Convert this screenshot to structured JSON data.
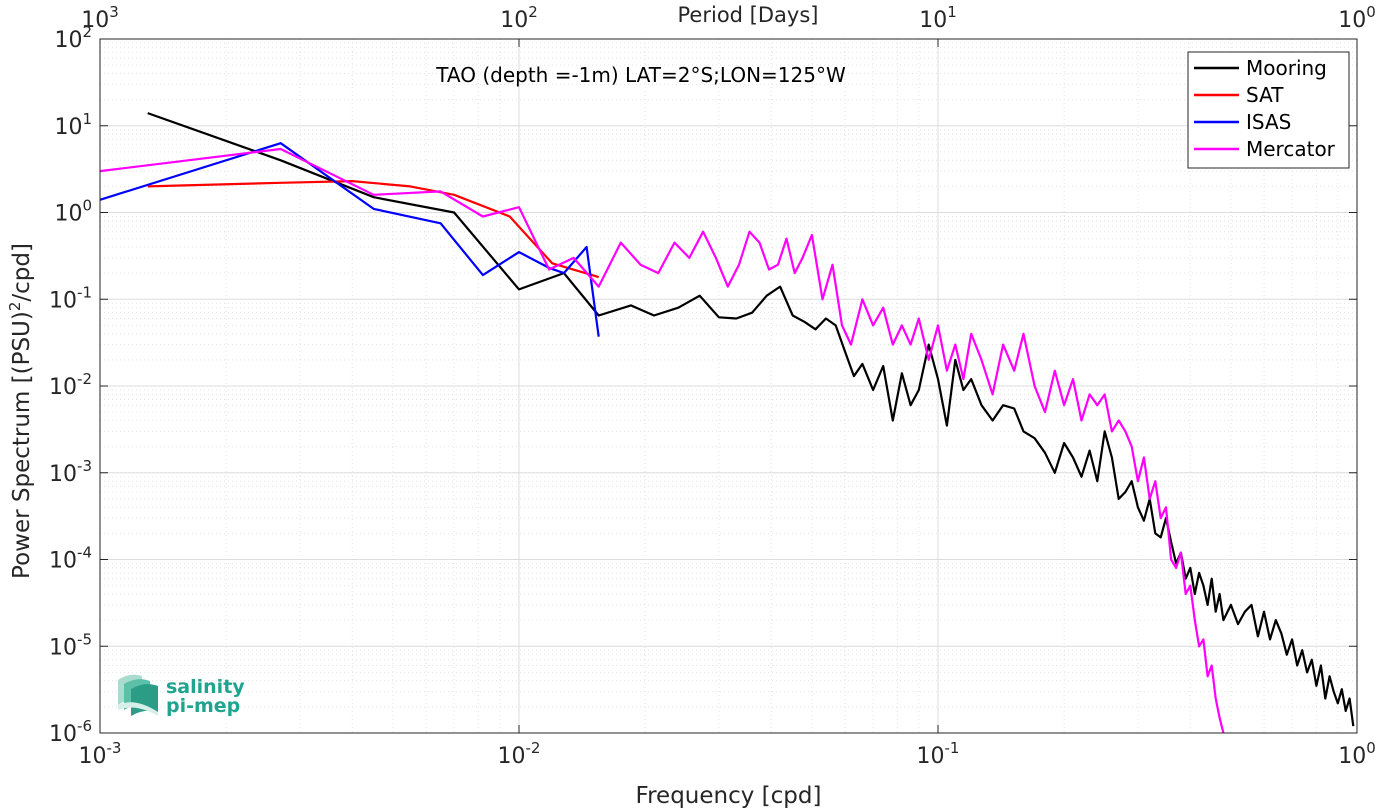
{
  "chart_data": {
    "type": "line",
    "title": "TAO (depth =-1m) LAT=2°S;LON=125°W",
    "xlabel": "Frequency [cpd]",
    "ylabel": "Power Spectrum [(PSU)",
    "ylabel_sup": "2",
    "ylabel_tail": "/cpd]",
    "top_xlabel": "Period [Days]",
    "x_scale": "log",
    "y_scale": "log",
    "xlim": [
      0.001,
      1
    ],
    "ylim": [
      1e-06,
      100
    ],
    "grid": true,
    "minor_grid": true,
    "legend_position": "top-right",
    "x_ticks": [
      {
        "value": 0.001,
        "base": "10",
        "exp": "-3"
      },
      {
        "value": 0.01,
        "base": "10",
        "exp": "-2"
      },
      {
        "value": 0.1,
        "base": "10",
        "exp": "-1"
      },
      {
        "value": 1,
        "base": "10",
        "exp": "0"
      }
    ],
    "top_x_ticks": [
      {
        "value": 0.001,
        "base": "10",
        "exp": "3"
      },
      {
        "value": 0.01,
        "base": "10",
        "exp": "2"
      },
      {
        "value": 0.1,
        "base": "10",
        "exp": "1"
      },
      {
        "value": 1,
        "base": "10",
        "exp": "0"
      }
    ],
    "y_ticks": [
      {
        "value": 100,
        "base": "10",
        "exp": "2"
      },
      {
        "value": 10,
        "base": "10",
        "exp": "1"
      },
      {
        "value": 1,
        "base": "10",
        "exp": "0"
      },
      {
        "value": 0.1,
        "base": "10",
        "exp": "-1"
      },
      {
        "value": 0.01,
        "base": "10",
        "exp": "-2"
      },
      {
        "value": 0.001,
        "base": "10",
        "exp": "-3"
      },
      {
        "value": 0.0001,
        "base": "10",
        "exp": "-4"
      },
      {
        "value": 1e-05,
        "base": "10",
        "exp": "-5"
      },
      {
        "value": 1e-06,
        "base": "10",
        "exp": "-6"
      }
    ],
    "series": [
      {
        "name": "Mooring",
        "color": "#000000",
        "x": [
          0.0013,
          0.0027,
          0.0045,
          0.007,
          0.01,
          0.0128,
          0.0155,
          0.0185,
          0.021,
          0.024,
          0.027,
          0.03,
          0.033,
          0.036,
          0.039,
          0.042,
          0.045,
          0.048,
          0.051,
          0.054,
          0.057,
          0.06,
          0.063,
          0.066,
          0.07,
          0.074,
          0.078,
          0.082,
          0.086,
          0.09,
          0.095,
          0.1,
          0.105,
          0.11,
          0.115,
          0.12,
          0.127,
          0.135,
          0.143,
          0.152,
          0.16,
          0.17,
          0.18,
          0.19,
          0.2,
          0.21,
          0.22,
          0.23,
          0.24,
          0.25,
          0.26,
          0.27,
          0.28,
          0.29,
          0.3,
          0.31,
          0.32,
          0.33,
          0.34,
          0.35,
          0.36,
          0.37,
          0.38,
          0.39,
          0.4,
          0.41,
          0.42,
          0.43,
          0.44,
          0.45,
          0.46,
          0.47,
          0.48,
          0.5,
          0.52,
          0.54,
          0.56,
          0.58,
          0.6,
          0.62,
          0.64,
          0.66,
          0.68,
          0.7,
          0.72,
          0.74,
          0.76,
          0.78,
          0.8,
          0.82,
          0.84,
          0.86,
          0.88,
          0.9,
          0.92,
          0.94,
          0.96,
          0.98
        ],
        "y": [
          14,
          4,
          1.5,
          1.0,
          0.13,
          0.2,
          0.065,
          0.085,
          0.065,
          0.08,
          0.11,
          0.062,
          0.06,
          0.07,
          0.11,
          0.14,
          0.065,
          0.055,
          0.045,
          0.06,
          0.05,
          0.025,
          0.013,
          0.018,
          0.009,
          0.017,
          0.004,
          0.014,
          0.006,
          0.009,
          0.03,
          0.012,
          0.0035,
          0.02,
          0.009,
          0.012,
          0.006,
          0.004,
          0.006,
          0.0055,
          0.003,
          0.0025,
          0.0017,
          0.001,
          0.0022,
          0.0015,
          0.0009,
          0.0018,
          0.0008,
          0.003,
          0.0015,
          0.0005,
          0.0006,
          0.0008,
          0.0004,
          0.00028,
          0.0005,
          0.0002,
          0.00018,
          0.0003,
          0.00016,
          9e-05,
          0.00012,
          6e-05,
          8e-05,
          4e-05,
          7e-05,
          5e-05,
          3e-05,
          6e-05,
          2.5e-05,
          4e-05,
          2e-05,
          3e-05,
          1.8e-05,
          2.5e-05,
          3e-05,
          1.3e-05,
          2.5e-05,
          1.2e-05,
          2e-05,
          1.4e-05,
          8e-06,
          1.2e-05,
          6e-06,
          9e-06,
          5e-06,
          7e-06,
          3.5e-06,
          6e-06,
          2.5e-06,
          4.5e-06,
          3e-06,
          2.2e-06,
          3.2e-06,
          1.8e-06,
          2.5e-06,
          1.2e-06
        ]
      },
      {
        "name": "SAT",
        "color": "#ff0000",
        "x": [
          0.0013,
          0.0027,
          0.004,
          0.0055,
          0.007,
          0.0095,
          0.012,
          0.0155
        ],
        "y": [
          2.0,
          2.2,
          2.3,
          2.0,
          1.6,
          0.9,
          0.26,
          0.18
        ]
      },
      {
        "name": "ISAS",
        "color": "#0000ff",
        "x": [
          0.001,
          0.0027,
          0.0045,
          0.0065,
          0.0082,
          0.01,
          0.0118,
          0.0128,
          0.0145,
          0.0155
        ],
        "y": [
          1.4,
          6.3,
          1.1,
          0.75,
          0.19,
          0.35,
          0.23,
          0.2,
          0.4,
          0.037
        ]
      },
      {
        "name": "Mercator",
        "color": "#ff00ff",
        "x": [
          0.001,
          0.0027,
          0.0045,
          0.0065,
          0.0082,
          0.01,
          0.0118,
          0.0135,
          0.0155,
          0.0175,
          0.0195,
          0.0215,
          0.0235,
          0.0255,
          0.0275,
          0.0295,
          0.0315,
          0.0335,
          0.0355,
          0.0375,
          0.0395,
          0.0415,
          0.0435,
          0.0455,
          0.0475,
          0.05,
          0.053,
          0.056,
          0.059,
          0.062,
          0.066,
          0.07,
          0.074,
          0.078,
          0.082,
          0.086,
          0.09,
          0.095,
          0.1,
          0.105,
          0.11,
          0.115,
          0.12,
          0.127,
          0.135,
          0.143,
          0.152,
          0.16,
          0.17,
          0.18,
          0.19,
          0.2,
          0.21,
          0.22,
          0.23,
          0.24,
          0.25,
          0.26,
          0.27,
          0.28,
          0.29,
          0.3,
          0.31,
          0.32,
          0.33,
          0.34,
          0.35,
          0.36,
          0.37,
          0.38,
          0.39,
          0.4,
          0.41,
          0.42,
          0.43,
          0.44,
          0.45,
          0.46,
          0.47,
          0.48
        ],
        "y": [
          3.0,
          5.4,
          1.6,
          1.75,
          0.9,
          1.15,
          0.22,
          0.3,
          0.14,
          0.45,
          0.25,
          0.2,
          0.45,
          0.3,
          0.6,
          0.3,
          0.14,
          0.25,
          0.6,
          0.45,
          0.22,
          0.25,
          0.5,
          0.2,
          0.3,
          0.55,
          0.1,
          0.25,
          0.05,
          0.03,
          0.1,
          0.05,
          0.08,
          0.03,
          0.05,
          0.03,
          0.06,
          0.02,
          0.05,
          0.015,
          0.03,
          0.012,
          0.04,
          0.02,
          0.008,
          0.03,
          0.015,
          0.04,
          0.01,
          0.005,
          0.015,
          0.006,
          0.012,
          0.004,
          0.008,
          0.006,
          0.008,
          0.003,
          0.004,
          0.003,
          0.002,
          0.0008,
          0.0015,
          0.0005,
          0.0008,
          0.0003,
          0.0004,
          0.0001,
          8e-05,
          0.00012,
          4e-05,
          5e-05,
          2e-05,
          1e-05,
          1.2e-05,
          4.5e-06,
          6e-06,
          2.5e-06,
          1.5e-06,
          1e-06
        ]
      }
    ]
  },
  "logo": {
    "line1": "salinity",
    "line2": "pi-mep",
    "color": "#1fa58f"
  }
}
